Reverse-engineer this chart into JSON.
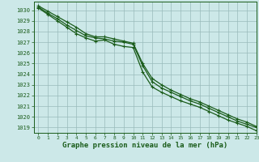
{
  "background_color": "#cce8e8",
  "grid_color": "#99bbbb",
  "line_color": "#1a5c1a",
  "marker_color": "#1a5c1a",
  "xlabel": "Graphe pression niveau de la mer (hPa)",
  "xlabel_fontsize": 6.5,
  "xlim": [
    -0.5,
    23
  ],
  "ylim": [
    1018.5,
    1030.8
  ],
  "yticks": [
    1019,
    1020,
    1021,
    1022,
    1023,
    1024,
    1025,
    1026,
    1027,
    1028,
    1029,
    1030
  ],
  "xticks": [
    0,
    1,
    2,
    3,
    4,
    5,
    6,
    7,
    8,
    9,
    10,
    11,
    12,
    13,
    14,
    15,
    16,
    17,
    18,
    19,
    20,
    21,
    22,
    23
  ],
  "series": [
    {
      "x": [
        0,
        1,
        2,
        3,
        4,
        5,
        6,
        7,
        8,
        9,
        10,
        11,
        12,
        13,
        14,
        15,
        16,
        17,
        18,
        19,
        20,
        21,
        22,
        23
      ],
      "y": [
        1030.2,
        1029.6,
        1029.0,
        1028.4,
        1027.8,
        1027.4,
        1027.1,
        1027.2,
        1026.8,
        1026.6,
        1026.5,
        1024.2,
        1022.8,
        1022.3,
        1021.9,
        1021.5,
        1021.2,
        1020.9,
        1020.5,
        1020.1,
        1019.7,
        1019.4,
        1019.1,
        1018.7
      ],
      "marker": "+",
      "markersize": 3.5,
      "linewidth": 0.9
    },
    {
      "x": [
        0,
        1,
        2,
        3,
        4,
        5,
        6,
        7,
        8,
        9,
        10,
        11,
        12,
        13,
        14,
        15,
        16,
        17,
        18,
        19,
        20,
        21,
        22,
        23
      ],
      "y": [
        1030.3,
        1029.7,
        1029.2,
        1028.6,
        1028.1,
        1027.6,
        1027.4,
        1027.3,
        1027.1,
        1027.0,
        1026.8,
        1024.8,
        1023.3,
        1022.7,
        1022.3,
        1021.9,
        1021.5,
        1021.2,
        1020.8,
        1020.4,
        1020.0,
        1019.6,
        1019.3,
        1019.0
      ],
      "marker": "+",
      "markersize": 3.5,
      "linewidth": 0.9
    },
    {
      "x": [
        0,
        1,
        2,
        3,
        4,
        5,
        6,
        7,
        8,
        9,
        10,
        11,
        12,
        13,
        14,
        15,
        16,
        17,
        18,
        19,
        20,
        21,
        22,
        23
      ],
      "y": [
        1030.4,
        1029.9,
        1029.4,
        1028.9,
        1028.4,
        1027.8,
        1027.5,
        1027.5,
        1027.3,
        1027.1,
        1026.9,
        1025.0,
        1023.6,
        1023.0,
        1022.5,
        1022.1,
        1021.7,
        1021.4,
        1021.0,
        1020.6,
        1020.2,
        1019.8,
        1019.5,
        1019.1
      ],
      "marker": "+",
      "markersize": 3.5,
      "linewidth": 0.9
    }
  ]
}
